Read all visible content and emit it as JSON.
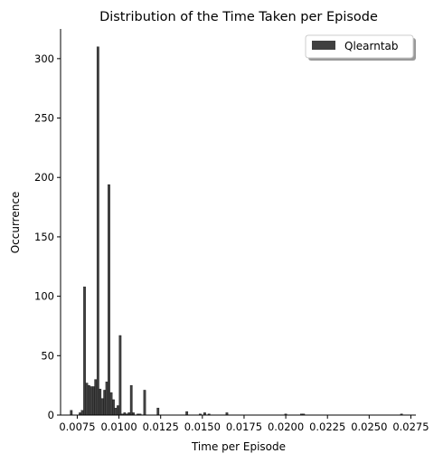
{
  "chart_data": {
    "type": "bar",
    "title": "Distribution of the Time Taken per Episode",
    "xlabel": "Time per Episode",
    "ylabel": "Occurrence",
    "xlim": [
      0.0065,
      0.0278
    ],
    "ylim": [
      0,
      325
    ],
    "xticks": [
      0.0075,
      0.01,
      0.0125,
      0.015,
      0.0175,
      0.02,
      0.0225,
      0.025,
      0.0275
    ],
    "xtick_labels": [
      "0.0075",
      "0.0100",
      "0.0125",
      "0.0150",
      "0.0175",
      "0.0200",
      "0.0225",
      "0.0250",
      "0.0275"
    ],
    "yticks": [
      0,
      50,
      100,
      150,
      200,
      250,
      300
    ],
    "ytick_labels": [
      "0",
      "50",
      "100",
      "150",
      "200",
      "250",
      "300"
    ],
    "bin_width": 0.000133,
    "bar_color": "#404040",
    "legend_position": "top-right",
    "series": [
      {
        "name": "Qlearntab",
        "color": "#404040",
        "bins": [
          {
            "x": 0.00714,
            "y": 4
          },
          {
            "x": 0.00767,
            "y": 2
          },
          {
            "x": 0.0078,
            "y": 4
          },
          {
            "x": 0.00794,
            "y": 108
          },
          {
            "x": 0.00807,
            "y": 27
          },
          {
            "x": 0.0082,
            "y": 25
          },
          {
            "x": 0.00834,
            "y": 24
          },
          {
            "x": 0.00847,
            "y": 24
          },
          {
            "x": 0.0086,
            "y": 30
          },
          {
            "x": 0.00874,
            "y": 310
          },
          {
            "x": 0.00887,
            "y": 22
          },
          {
            "x": 0.009,
            "y": 14
          },
          {
            "x": 0.00914,
            "y": 21
          },
          {
            "x": 0.00927,
            "y": 28
          },
          {
            "x": 0.0094,
            "y": 194
          },
          {
            "x": 0.00954,
            "y": 19
          },
          {
            "x": 0.00967,
            "y": 13
          },
          {
            "x": 0.0098,
            "y": 6
          },
          {
            "x": 0.00994,
            "y": 8
          },
          {
            "x": 0.01007,
            "y": 67
          },
          {
            "x": 0.0102,
            "y": 1
          },
          {
            "x": 0.01034,
            "y": 2
          },
          {
            "x": 0.01047,
            "y": 1
          },
          {
            "x": 0.0106,
            "y": 2
          },
          {
            "x": 0.01074,
            "y": 25
          },
          {
            "x": 0.01087,
            "y": 2
          },
          {
            "x": 0.01114,
            "y": 1
          },
          {
            "x": 0.01127,
            "y": 1
          },
          {
            "x": 0.01154,
            "y": 21
          },
          {
            "x": 0.01234,
            "y": 6
          },
          {
            "x": 0.01407,
            "y": 3
          },
          {
            "x": 0.01487,
            "y": 1
          },
          {
            "x": 0.01514,
            "y": 2
          },
          {
            "x": 0.0154,
            "y": 1
          },
          {
            "x": 0.01647,
            "y": 2
          },
          {
            "x": 0.02,
            "y": 1
          },
          {
            "x": 0.02094,
            "y": 1
          },
          {
            "x": 0.02107,
            "y": 1
          },
          {
            "x": 0.02694,
            "y": 1
          }
        ]
      }
    ]
  }
}
